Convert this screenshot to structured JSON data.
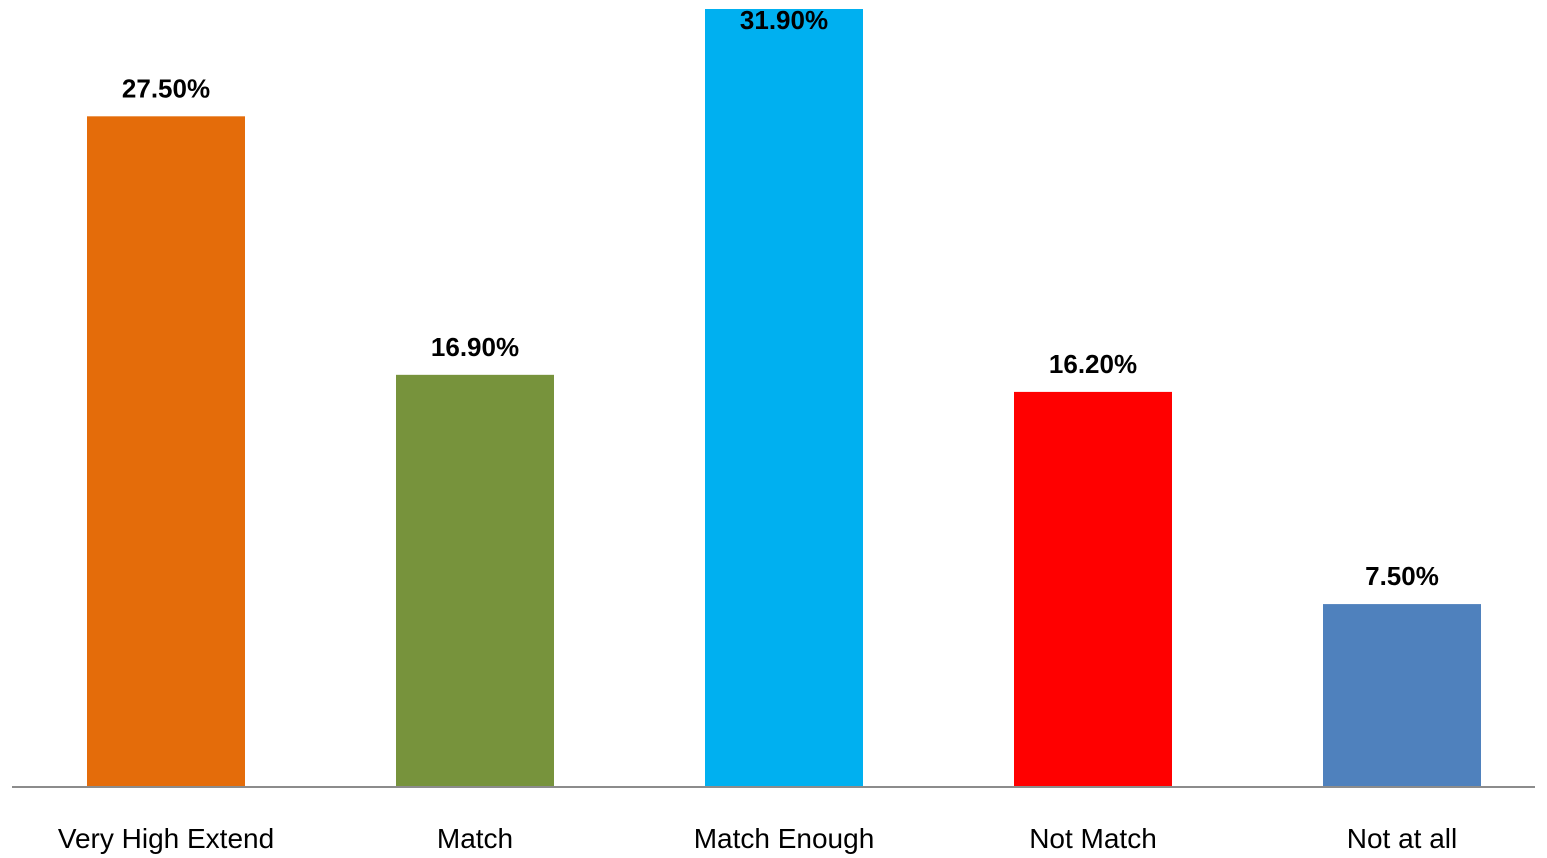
{
  "chart_data": {
    "type": "bar",
    "categories": [
      "Very High Extend",
      "Match",
      "Match Enough",
      "Not Match",
      "Not at all"
    ],
    "values": [
      27.5,
      16.9,
      31.9,
      16.2,
      7.5
    ],
    "data_labels": [
      "27.50%",
      "16.90%",
      "31.90%",
      "16.20%",
      "7.50%"
    ],
    "colors": [
      "#E46C0A",
      "#77933C",
      "#00B0F0",
      "#FF0000",
      "#4F81BD"
    ],
    "title": "",
    "xlabel": "",
    "ylabel": "",
    "ylim": [
      0,
      31.9
    ],
    "grid": false,
    "legend": "none"
  }
}
